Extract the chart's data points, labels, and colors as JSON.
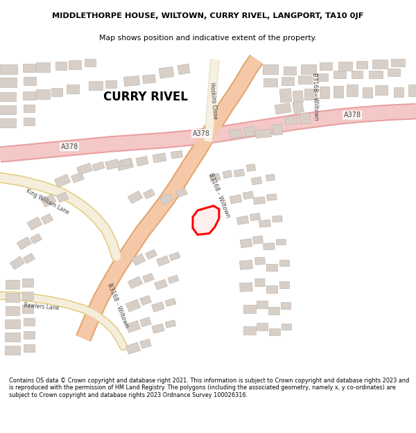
{
  "title_line1": "MIDDLETHORPE HOUSE, WILTOWN, CURRY RIVEL, LANGPORT, TA10 0JF",
  "title_line2": "Map shows position and indicative extent of the property.",
  "footer_text": "Contains OS data © Crown copyright and database right 2021. This information is subject to Crown copyright and database rights 2023 and is reproduced with the permission of HM Land Registry. The polygons (including the associated geometry, namely x, y co-ordinates) are subject to Crown copyright and database rights 2023 Ordnance Survey 100026316.",
  "map_bg": "#ffffff",
  "road_a_fill": "#f5c8c8",
  "road_a_edge": "#e8a0a0",
  "road_b_fill": "#f5c8a8",
  "road_b_edge": "#e0a870",
  "road_minor_fill": "#f5eedc",
  "road_minor_edge": "#e0c870",
  "building_color": "#d8d0c8",
  "building_edge": "#c0b8b0",
  "highlight_color": "#cc0000",
  "text_color": "#222222",
  "road_label_color": "#444444",
  "a378_x": [
    0,
    40,
    80,
    120,
    160,
    200,
    240,
    280,
    310,
    340,
    370,
    400,
    430,
    460,
    490,
    520,
    560,
    600
  ],
  "a378_y_img": [
    200,
    196,
    192,
    188,
    184,
    181,
    178,
    174,
    170,
    165,
    160,
    155,
    150,
    146,
    142,
    139,
    136,
    134
  ],
  "b3168_x": [
    370,
    360,
    350,
    338,
    325,
    312,
    300,
    288,
    272,
    256,
    240,
    222,
    205,
    188,
    172,
    158,
    145,
    132,
    120
  ],
  "b3168_y_img": [
    55,
    70,
    88,
    108,
    128,
    150,
    170,
    192,
    218,
    245,
    270,
    295,
    318,
    345,
    370,
    395,
    420,
    450,
    480
  ],
  "hoskins_x": [
    310,
    308,
    306,
    304,
    302,
    300
  ],
  "hoskins_y_img": [
    55,
    80,
    110,
    140,
    165,
    180
  ],
  "kwl_x": [
    0,
    30,
    60,
    88,
    108,
    125,
    140,
    153,
    162,
    168
  ],
  "kwl_y_img": [
    235,
    240,
    248,
    258,
    270,
    283,
    298,
    315,
    335,
    355
  ],
  "bawlers_x": [
    0,
    20,
    45,
    72,
    98,
    120,
    138,
    152,
    164,
    172,
    178
  ],
  "bawlers_y_img": [
    415,
    415,
    418,
    422,
    428,
    435,
    444,
    455,
    467,
    480,
    492
  ],
  "prop_x": [
    285,
    308,
    316,
    316,
    310,
    302,
    285,
    278,
    278,
    285
  ],
  "prop_y_img": [
    285,
    278,
    283,
    297,
    310,
    320,
    322,
    312,
    295,
    285
  ],
  "buildings": [
    [
      12,
      70,
      25,
      14,
      0
    ],
    [
      42,
      68,
      18,
      12,
      0
    ],
    [
      10,
      90,
      28,
      14,
      0
    ],
    [
      43,
      88,
      18,
      12,
      0
    ],
    [
      10,
      112,
      26,
      14,
      0
    ],
    [
      42,
      110,
      18,
      12,
      0
    ],
    [
      10,
      132,
      26,
      14,
      0
    ],
    [
      42,
      130,
      16,
      12,
      0
    ],
    [
      10,
      152,
      26,
      14,
      0
    ],
    [
      42,
      150,
      16,
      12,
      0
    ],
    [
      62,
      67,
      20,
      14,
      0
    ],
    [
      88,
      65,
      16,
      13,
      0
    ],
    [
      108,
      63,
      18,
      14,
      0
    ],
    [
      130,
      60,
      16,
      12,
      0
    ],
    [
      62,
      108,
      20,
      14,
      0
    ],
    [
      82,
      105,
      16,
      12,
      0
    ],
    [
      105,
      100,
      18,
      13,
      0
    ],
    [
      138,
      95,
      20,
      13,
      0
    ],
    [
      160,
      93,
      16,
      12,
      0
    ],
    [
      190,
      88,
      22,
      14,
      5
    ],
    [
      215,
      85,
      18,
      12,
      5
    ],
    [
      240,
      75,
      20,
      15,
      8
    ],
    [
      265,
      70,
      16,
      14,
      10
    ],
    [
      390,
      70,
      22,
      14,
      0
    ],
    [
      418,
      72,
      18,
      12,
      0
    ],
    [
      445,
      70,
      22,
      14,
      0
    ],
    [
      470,
      65,
      18,
      12,
      0
    ],
    [
      498,
      65,
      20,
      14,
      0
    ],
    [
      522,
      63,
      16,
      12,
      0
    ],
    [
      548,
      62,
      22,
      14,
      0
    ],
    [
      574,
      60,
      20,
      12,
      0
    ],
    [
      390,
      90,
      20,
      13,
      0
    ],
    [
      415,
      88,
      18,
      12,
      0
    ],
    [
      440,
      86,
      20,
      13,
      0
    ],
    [
      465,
      82,
      16,
      12,
      0
    ],
    [
      490,
      78,
      18,
      12,
      0
    ],
    [
      515,
      78,
      16,
      11,
      0
    ],
    [
      542,
      78,
      20,
      12,
      0
    ],
    [
      568,
      75,
      18,
      12,
      0
    ],
    [
      412,
      110,
      16,
      20,
      5
    ],
    [
      430,
      112,
      14,
      18,
      5
    ],
    [
      448,
      108,
      18,
      16,
      0
    ],
    [
      468,
      105,
      14,
      18,
      0
    ],
    [
      488,
      104,
      14,
      18,
      0
    ],
    [
      508,
      102,
      16,
      18,
      0
    ],
    [
      530,
      105,
      14,
      16,
      0
    ],
    [
      550,
      102,
      18,
      15,
      0
    ],
    [
      575,
      105,
      14,
      15,
      0
    ],
    [
      595,
      102,
      12,
      18,
      0
    ],
    [
      408,
      130,
      22,
      14,
      10
    ],
    [
      430,
      128,
      14,
      16,
      10
    ],
    [
      420,
      148,
      18,
      12,
      5
    ],
    [
      440,
      145,
      14,
      16,
      5
    ],
    [
      340,
      168,
      18,
      12,
      10
    ],
    [
      360,
      165,
      14,
      14,
      10
    ],
    [
      380,
      168,
      22,
      12,
      5
    ],
    [
      400,
      162,
      14,
      16,
      5
    ],
    [
      180,
      215,
      22,
      14,
      15
    ],
    [
      205,
      210,
      16,
      12,
      12
    ],
    [
      230,
      205,
      18,
      12,
      10
    ],
    [
      255,
      200,
      16,
      10,
      8
    ],
    [
      122,
      222,
      20,
      12,
      20
    ],
    [
      142,
      218,
      16,
      10,
      18
    ],
    [
      162,
      215,
      18,
      12,
      15
    ],
    [
      182,
      212,
      14,
      10,
      12
    ],
    [
      90,
      240,
      20,
      13,
      25
    ],
    [
      112,
      235,
      16,
      11,
      22
    ],
    [
      70,
      270,
      18,
      13,
      28
    ],
    [
      90,
      265,
      14,
      11,
      25
    ],
    [
      50,
      305,
      18,
      13,
      30
    ],
    [
      68,
      298,
      14,
      11,
      28
    ],
    [
      35,
      335,
      18,
      12,
      32
    ],
    [
      52,
      328,
      14,
      10,
      30
    ],
    [
      25,
      365,
      18,
      12,
      35
    ],
    [
      42,
      358,
      14,
      10,
      32
    ],
    [
      18,
      398,
      20,
      14,
      0
    ],
    [
      40,
      395,
      16,
      12,
      0
    ],
    [
      18,
      418,
      20,
      14,
      0
    ],
    [
      40,
      415,
      16,
      12,
      0
    ],
    [
      18,
      438,
      20,
      14,
      0
    ],
    [
      40,
      435,
      16,
      12,
      0
    ],
    [
      18,
      458,
      22,
      14,
      0
    ],
    [
      42,
      455,
      16,
      12,
      0
    ],
    [
      18,
      478,
      22,
      14,
      0
    ],
    [
      42,
      475,
      16,
      12,
      0
    ],
    [
      18,
      498,
      22,
      14,
      0
    ],
    [
      42,
      495,
      16,
      12,
      0
    ],
    [
      195,
      265,
      18,
      12,
      30
    ],
    [
      215,
      260,
      14,
      10,
      28
    ],
    [
      240,
      268,
      16,
      11,
      25
    ],
    [
      262,
      258,
      14,
      10,
      22
    ],
    [
      310,
      235,
      14,
      10,
      15
    ],
    [
      328,
      230,
      12,
      10,
      12
    ],
    [
      345,
      228,
      14,
      10,
      10
    ],
    [
      362,
      220,
      12,
      10,
      8
    ],
    [
      370,
      240,
      14,
      10,
      10
    ],
    [
      390,
      235,
      12,
      9,
      8
    ],
    [
      340,
      268,
      16,
      11,
      12
    ],
    [
      358,
      262,
      14,
      10,
      10
    ],
    [
      374,
      270,
      16,
      10,
      8
    ],
    [
      392,
      265,
      14,
      9,
      5
    ],
    [
      350,
      300,
      16,
      11,
      10
    ],
    [
      368,
      295,
      14,
      10,
      8
    ],
    [
      382,
      305,
      16,
      10,
      5
    ],
    [
      400,
      298,
      14,
      9,
      3
    ],
    [
      355,
      335,
      16,
      12,
      8
    ],
    [
      372,
      330,
      14,
      11,
      5
    ],
    [
      388,
      340,
      16,
      10,
      3
    ],
    [
      405,
      333,
      14,
      9,
      0
    ],
    [
      355,
      368,
      18,
      13,
      5
    ],
    [
      375,
      362,
      14,
      11,
      3
    ],
    [
      392,
      372,
      16,
      10,
      0
    ],
    [
      410,
      365,
      14,
      9,
      0
    ],
    [
      355,
      402,
      18,
      13,
      3
    ],
    [
      375,
      395,
      14,
      12,
      2
    ],
    [
      392,
      405,
      16,
      11,
      0
    ],
    [
      410,
      398,
      14,
      10,
      0
    ],
    [
      360,
      435,
      18,
      13,
      0
    ],
    [
      378,
      428,
      16,
      12,
      0
    ],
    [
      395,
      438,
      16,
      11,
      0
    ],
    [
      412,
      430,
      14,
      10,
      0
    ],
    [
      360,
      468,
      18,
      13,
      0
    ],
    [
      378,
      462,
      16,
      12,
      0
    ],
    [
      396,
      470,
      16,
      11,
      0
    ],
    [
      413,
      462,
      14,
      10,
      0
    ],
    [
      200,
      360,
      16,
      12,
      28
    ],
    [
      218,
      352,
      14,
      10,
      25
    ],
    [
      235,
      362,
      16,
      11,
      22
    ],
    [
      252,
      355,
      14,
      9,
      20
    ],
    [
      195,
      395,
      18,
      12,
      25
    ],
    [
      214,
      388,
      14,
      10,
      22
    ],
    [
      232,
      398,
      16,
      11,
      20
    ],
    [
      250,
      390,
      14,
      9,
      18
    ],
    [
      192,
      430,
      18,
      13,
      22
    ],
    [
      210,
      422,
      14,
      11,
      20
    ],
    [
      228,
      432,
      16,
      11,
      18
    ],
    [
      246,
      425,
      14,
      9,
      15
    ],
    [
      192,
      462,
      18,
      13,
      20
    ],
    [
      210,
      455,
      14,
      11,
      18
    ],
    [
      228,
      465,
      16,
      11,
      15
    ],
    [
      246,
      458,
      14,
      9,
      12
    ],
    [
      192,
      495,
      18,
      13,
      18
    ],
    [
      210,
      488,
      14,
      11,
      15
    ]
  ]
}
